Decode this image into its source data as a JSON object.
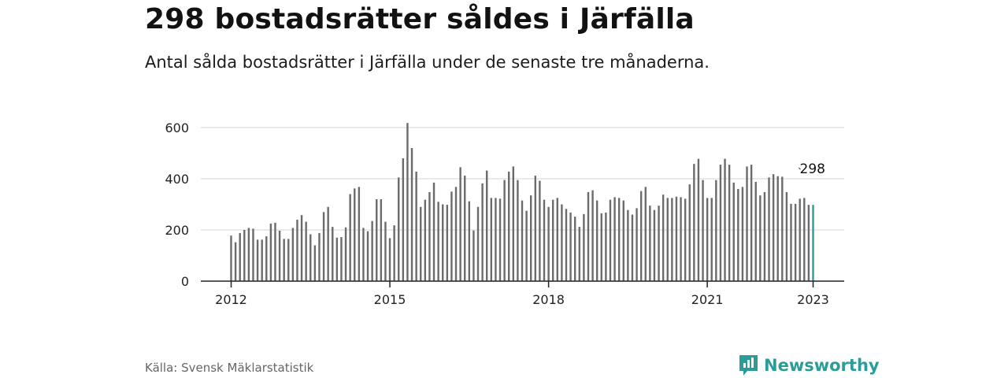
{
  "header": {
    "title": "298 bostadsrätter såldes i Järfälla",
    "subtitle": "Antal sålda bostadsrätter i Järfälla under de senaste tre månaderna."
  },
  "footer": {
    "source": "Källa: Svensk Mäklarstatistik",
    "brand": "Newsworthy"
  },
  "colors": {
    "bar": "#6b6b6b",
    "highlight": "#2a9d98",
    "grid": "#d6d6d6",
    "axis": "#222222",
    "brand": "#2a9d98"
  },
  "icons": {
    "brand_logo": "newsworthy-logo-icon"
  },
  "chart_data": {
    "type": "bar",
    "title": "298 bostadsrätter såldes i Järfälla",
    "subtitle": "Antal sålda bostadsrätter i Järfälla under de senaste tre månaderna.",
    "xlabel": "",
    "ylabel": "",
    "ylim": [
      0,
      620
    ],
    "yticks": [
      "0",
      "200",
      "400",
      "600"
    ],
    "xticks": [
      "2012",
      "2015",
      "2018",
      "2021",
      "2023"
    ],
    "grid": true,
    "legend": "none",
    "annotation": "298",
    "highlight_last": true,
    "start": "2012-01",
    "end": "2023-01",
    "frequency": "monthly",
    "values": [
      178,
      152,
      188,
      200,
      208,
      205,
      162,
      162,
      175,
      225,
      228,
      197,
      165,
      165,
      208,
      240,
      258,
      232,
      183,
      140,
      188,
      270,
      290,
      212,
      170,
      172,
      210,
      340,
      362,
      368,
      208,
      195,
      235,
      320,
      320,
      232,
      168,
      218,
      405,
      480,
      618,
      520,
      428,
      290,
      318,
      348,
      385,
      310,
      300,
      298,
      350,
      368,
      445,
      412,
      312,
      198,
      290,
      382,
      432,
      325,
      325,
      322,
      395,
      428,
      448,
      395,
      315,
      275,
      335,
      412,
      392,
      318,
      290,
      318,
      325,
      300,
      282,
      268,
      252,
      212,
      262,
      348,
      355,
      315,
      265,
      268,
      318,
      328,
      325,
      315,
      278,
      260,
      285,
      352,
      368,
      295,
      278,
      295,
      338,
      325,
      325,
      330,
      328,
      322,
      378,
      458,
      478,
      395,
      325,
      325,
      395,
      455,
      478,
      455,
      385,
      360,
      368,
      448,
      455,
      388,
      335,
      348,
      405,
      418,
      410,
      408,
      348,
      302,
      302,
      322,
      325,
      298,
      298
    ]
  }
}
